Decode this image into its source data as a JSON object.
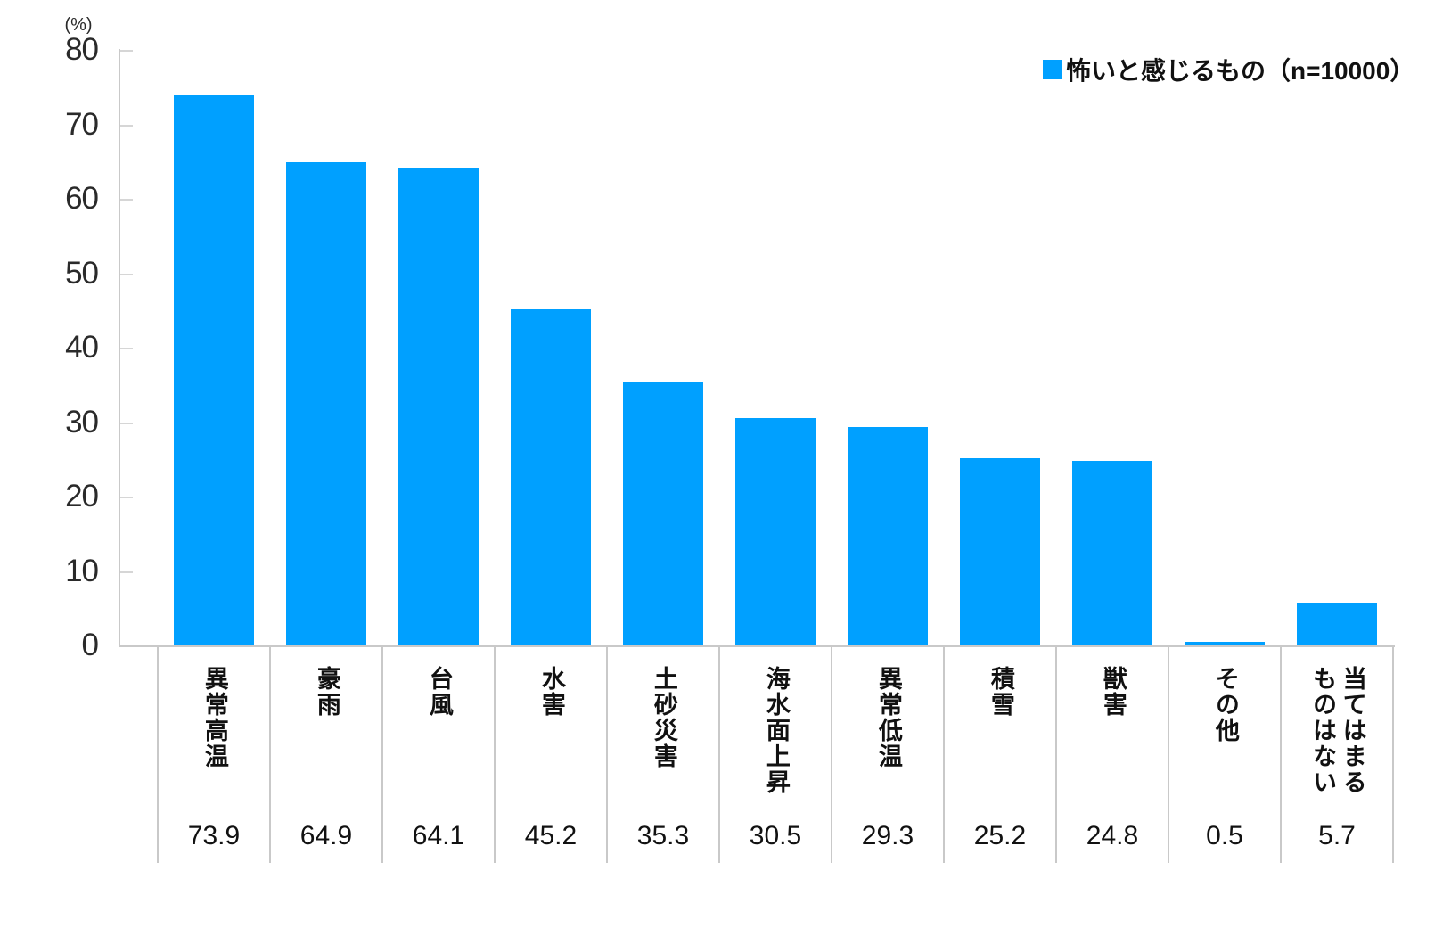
{
  "chart_data": {
    "type": "bar",
    "unit_label": "(%)",
    "legend": {
      "label": "怖いと感じるもの（n=10000）",
      "position": "top-right",
      "swatch_color": "#00A0FF"
    },
    "categories": [
      "異常高温",
      "豪雨",
      "台風",
      "水害",
      "土砂災害",
      "海水面上昇",
      "異常低温",
      "積雪",
      "獣害",
      "その他",
      "当てはまるものはない"
    ],
    "series": [
      {
        "name": "怖いと感じるもの（n=10000）",
        "values": [
          73.9,
          64.9,
          64.1,
          45.2,
          35.3,
          30.5,
          29.3,
          25.2,
          24.8,
          0.5,
          5.7
        ]
      }
    ],
    "value_labels": [
      "73.9",
      "64.9",
      "64.1",
      "45.2",
      "35.3",
      "30.5",
      "29.3",
      "25.2",
      "24.8",
      "0.5",
      "5.7"
    ],
    "ylim": [
      0,
      80
    ],
    "yticks": [
      0,
      10,
      20,
      30,
      40,
      50,
      60,
      70,
      80
    ],
    "grid": false,
    "value_table_shown": true,
    "colors": {
      "bar": "#00A0FF",
      "axis": "#C9C9C9",
      "tick": "#D6D6D6",
      "text": "#111111"
    }
  }
}
